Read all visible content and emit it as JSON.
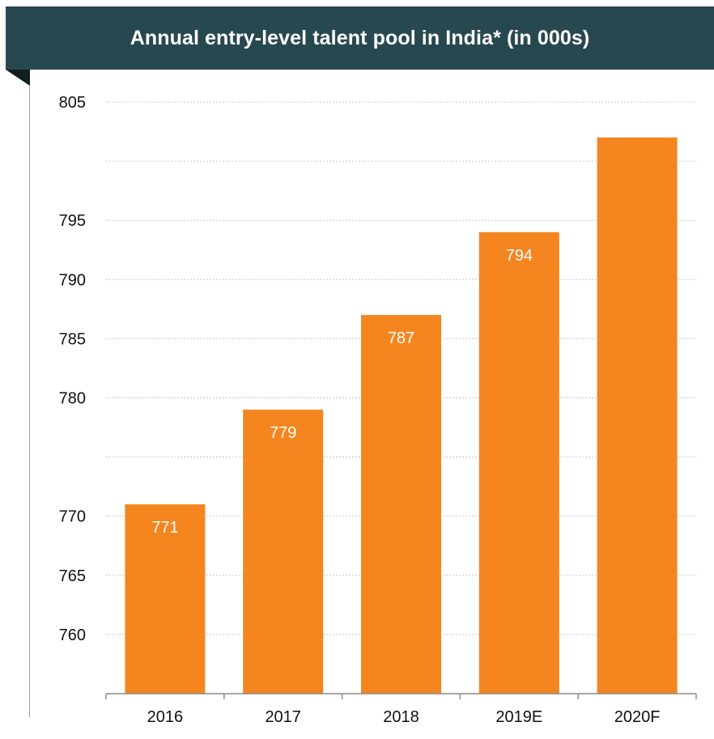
{
  "chart_data": {
    "type": "bar",
    "title": "Annual entry-level talent pool in India* (in 000s)",
    "xlabel": "",
    "ylabel": "",
    "categories": [
      "2016",
      "2017",
      "2018",
      "2019E",
      "2020F"
    ],
    "values": [
      771,
      779,
      787,
      794,
      802
    ],
    "data_labels": [
      "771",
      "779",
      "787",
      "794",
      ""
    ],
    "ylim": [
      758,
      807
    ],
    "y_ticks": [
      805,
      795,
      790,
      785,
      780,
      770,
      765,
      760
    ],
    "gridlines": [
      805,
      800,
      795,
      790,
      785,
      780,
      775,
      770,
      765,
      760
    ],
    "grid": true,
    "bar_color": "#f4851f",
    "title_bg": "#284850"
  }
}
